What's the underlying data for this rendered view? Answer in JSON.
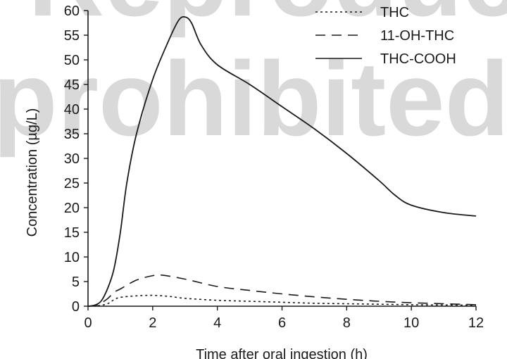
{
  "chart_data": {
    "type": "line",
    "title": "",
    "xlabel": "Time after oral ingestion (h)",
    "ylabel": "Concentration (µg/L)",
    "xlim": [
      0,
      12
    ],
    "ylim": [
      0,
      60
    ],
    "xticks": [
      0,
      2,
      4,
      6,
      8,
      10,
      12
    ],
    "yticks": [
      0,
      5,
      10,
      15,
      20,
      25,
      30,
      35,
      40,
      45,
      50,
      55,
      60
    ],
    "grid": false,
    "legend_position": "top-right",
    "watermark": {
      "line1": "Reproduction",
      "line2": "prohibited."
    },
    "series": [
      {
        "name": "THC",
        "style": "dotted",
        "color": "#1a1a1a",
        "points": [
          [
            0,
            0
          ],
          [
            0.3,
            0.1
          ],
          [
            0.6,
            0.5
          ],
          [
            0.8,
            1.3
          ],
          [
            1,
            1.8
          ],
          [
            1.5,
            2.1
          ],
          [
            2,
            2.2
          ],
          [
            2.5,
            2.0
          ],
          [
            3,
            1.6
          ],
          [
            4,
            1.2
          ],
          [
            5,
            1.0
          ],
          [
            6,
            0.8
          ],
          [
            7,
            0.6
          ],
          [
            8,
            0.5
          ],
          [
            9,
            0.4
          ],
          [
            10,
            0.3
          ],
          [
            11,
            0.25
          ],
          [
            12,
            0.2
          ]
        ]
      },
      {
        "name": "11-OH-THC",
        "style": "dashed",
        "color": "#1a1a1a",
        "points": [
          [
            0,
            0
          ],
          [
            0.3,
            0.3
          ],
          [
            0.6,
            1.5
          ],
          [
            0.8,
            2.8
          ],
          [
            1,
            3.5
          ],
          [
            1.5,
            5.3
          ],
          [
            2,
            6.2
          ],
          [
            2.3,
            6.3
          ],
          [
            3,
            5.5
          ],
          [
            4,
            4.0
          ],
          [
            5,
            3.2
          ],
          [
            6,
            2.5
          ],
          [
            7,
            1.9
          ],
          [
            8,
            1.4
          ],
          [
            9,
            1.0
          ],
          [
            10,
            0.7
          ],
          [
            11,
            0.5
          ],
          [
            12,
            0.3
          ]
        ]
      },
      {
        "name": "THC-COOH",
        "style": "solid",
        "color": "#1a1a1a",
        "points": [
          [
            0,
            0
          ],
          [
            0.2,
            0.2
          ],
          [
            0.4,
            1.0
          ],
          [
            0.6,
            3.5
          ],
          [
            0.8,
            7.5
          ],
          [
            1,
            15
          ],
          [
            1.2,
            25
          ],
          [
            1.5,
            35
          ],
          [
            2,
            46
          ],
          [
            2.5,
            54
          ],
          [
            2.8,
            58
          ],
          [
            3,
            58.7
          ],
          [
            3.2,
            57.5
          ],
          [
            3.5,
            53
          ],
          [
            4,
            49
          ],
          [
            5,
            45
          ],
          [
            6,
            40.5
          ],
          [
            7,
            36
          ],
          [
            8,
            31
          ],
          [
            9,
            25.5
          ],
          [
            9.5,
            22.5
          ],
          [
            10,
            20.5
          ],
          [
            11,
            19
          ],
          [
            12,
            18.3
          ]
        ]
      }
    ]
  }
}
